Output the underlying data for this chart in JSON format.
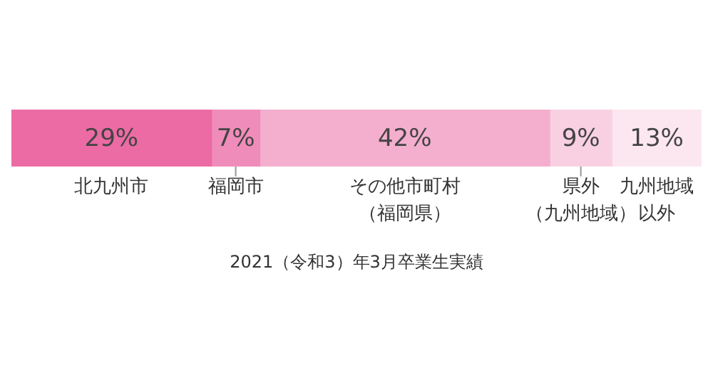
{
  "chart_data": {
    "type": "bar",
    "orientation": "horizontal",
    "stacked": true,
    "categories": [
      null
    ],
    "xlim": [
      0,
      100
    ],
    "tick_labels": false,
    "grid": false,
    "legend": false,
    "series": [
      {
        "name": "北九州市",
        "color": "#ec6ba4",
        "values": [
          29
        ],
        "value_labels": [
          "29%"
        ]
      },
      {
        "name": "福岡市",
        "color": "#f08cba",
        "values": [
          7
        ],
        "value_labels": [
          "7%"
        ]
      },
      {
        "name": "その他市町村（福岡県）",
        "color": "#f4afce",
        "values": [
          42
        ],
        "value_labels": [
          "42%"
        ]
      },
      {
        "name": "県外（九州地域）",
        "color": "#f8d0e2",
        "values": [
          9
        ],
        "value_labels": [
          "9%"
        ]
      },
      {
        "name": "九州地域以外",
        "color": "#fce7f0",
        "values": [
          13
        ],
        "value_labels": [
          "13%"
        ]
      }
    ],
    "annotations": [
      "2021（令和3）年3月卒業生実績"
    ]
  }
}
